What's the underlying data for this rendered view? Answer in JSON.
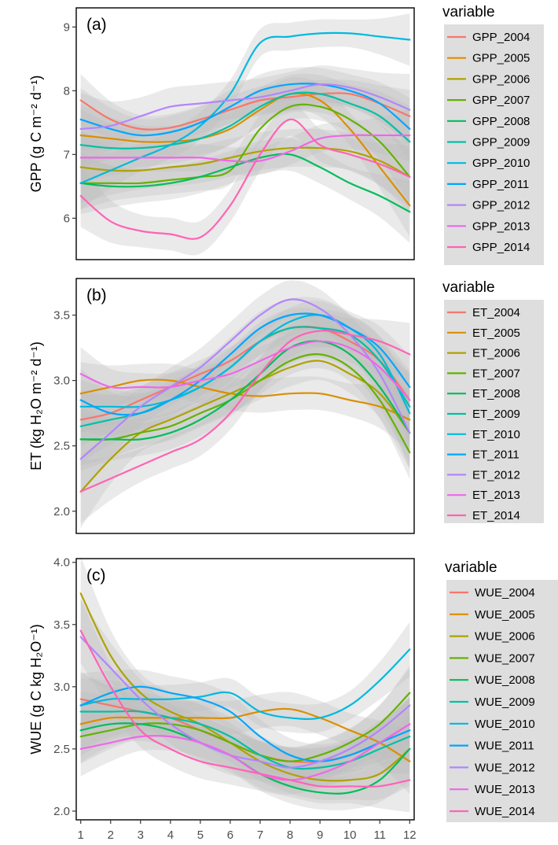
{
  "colors": {
    "2004": "#F8766D",
    "2005": "#DB8E00",
    "2006": "#AEA200",
    "2007": "#64B200",
    "2008": "#00BD5C",
    "2009": "#00C1A7",
    "2010": "#00BADE",
    "2011": "#00A6FF",
    "2012": "#B385FF",
    "2013": "#EF67EB",
    "2014": "#FF63B6",
    "band": "#bdbdbd",
    "axis_text": "#4d4d4d"
  },
  "chart_data": [
    {
      "type": "line",
      "panel_label": "(a)",
      "ylabel": "GPP (g C m⁻² d⁻¹)",
      "ylim": [
        5.35,
        9.3
      ],
      "yticks": [
        6,
        7,
        8,
        9
      ],
      "xlim": [
        0.85,
        12.15
      ],
      "xticks": [],
      "legend": {
        "title": "variable",
        "placement": "right"
      },
      "x": [
        1,
        2,
        3,
        4,
        5,
        6,
        7,
        8,
        9,
        10,
        11,
        12
      ],
      "series": [
        {
          "name": "GPP_2004",
          "year": "2004",
          "values": [
            7.85,
            7.55,
            7.4,
            7.42,
            7.55,
            7.7,
            7.85,
            7.9,
            7.95,
            7.95,
            7.8,
            7.6
          ]
        },
        {
          "name": "GPP_2005",
          "year": "2005",
          "values": [
            7.3,
            7.25,
            7.2,
            7.2,
            7.25,
            7.4,
            7.7,
            7.95,
            7.85,
            7.4,
            6.8,
            6.2
          ]
        },
        {
          "name": "GPP_2006",
          "year": "2006",
          "values": [
            6.8,
            6.75,
            6.75,
            6.8,
            6.85,
            6.95,
            7.05,
            7.1,
            7.1,
            7.05,
            6.9,
            6.65
          ]
        },
        {
          "name": "GPP_2007",
          "year": "2007",
          "values": [
            6.55,
            6.55,
            6.55,
            6.6,
            6.65,
            6.75,
            7.4,
            7.75,
            7.75,
            7.55,
            7.2,
            6.65
          ]
        },
        {
          "name": "GPP_2008",
          "year": "2008",
          "values": [
            6.55,
            6.5,
            6.5,
            6.55,
            6.65,
            6.8,
            6.95,
            7.0,
            6.8,
            6.55,
            6.35,
            6.1
          ]
        },
        {
          "name": "GPP_2009",
          "year": "2009",
          "values": [
            7.15,
            7.1,
            7.1,
            7.15,
            7.25,
            7.45,
            7.75,
            7.95,
            7.95,
            7.8,
            7.6,
            7.2
          ]
        },
        {
          "name": "GPP_2010",
          "year": "2010",
          "values": [
            6.55,
            6.75,
            6.95,
            7.15,
            7.45,
            7.95,
            8.75,
            8.85,
            8.9,
            8.9,
            8.85,
            8.8
          ]
        },
        {
          "name": "GPP_2011",
          "year": "2011",
          "values": [
            7.55,
            7.4,
            7.3,
            7.35,
            7.5,
            7.75,
            8.0,
            8.1,
            8.1,
            8.0,
            7.8,
            7.4
          ]
        },
        {
          "name": "GPP_2012",
          "year": "2012",
          "values": [
            7.4,
            7.45,
            7.6,
            7.75,
            7.8,
            7.85,
            7.9,
            8.0,
            8.1,
            8.05,
            7.9,
            7.7
          ]
        },
        {
          "name": "GPP_2013",
          "year": "2013",
          "values": [
            6.95,
            6.95,
            6.95,
            6.95,
            6.95,
            6.9,
            6.9,
            7.05,
            7.25,
            7.3,
            7.3,
            7.3
          ]
        },
        {
          "name": "GPP_2014",
          "year": "2014",
          "values": [
            6.35,
            5.95,
            5.8,
            5.75,
            5.7,
            6.2,
            7.0,
            7.55,
            7.15,
            7.0,
            6.85,
            6.65
          ]
        }
      ]
    },
    {
      "type": "line",
      "panel_label": "(b)",
      "ylabel": "ET (kg H₂O m⁻² d⁻¹)",
      "ylim": [
        1.83,
        3.78
      ],
      "yticks": [
        2.0,
        2.5,
        3.0,
        3.5
      ],
      "xlim": [
        0.85,
        12.15
      ],
      "xticks": [],
      "legend": {
        "title": "variable",
        "placement": "right"
      },
      "x": [
        1,
        2,
        3,
        4,
        5,
        6,
        7,
        8,
        9,
        10,
        11,
        12
      ],
      "series": [
        {
          "name": "ET_2004",
          "year": "2004",
          "values": [
            2.7,
            2.75,
            2.85,
            2.95,
            3.05,
            3.15,
            3.3,
            3.4,
            3.4,
            3.3,
            3.15,
            2.85
          ]
        },
        {
          "name": "ET_2005",
          "year": "2005",
          "values": [
            2.9,
            2.95,
            3.0,
            3.0,
            2.95,
            2.9,
            2.88,
            2.9,
            2.9,
            2.85,
            2.8,
            2.7
          ]
        },
        {
          "name": "ET_2006",
          "year": "2006",
          "values": [
            2.15,
            2.4,
            2.6,
            2.7,
            2.8,
            2.9,
            3.0,
            3.1,
            3.15,
            3.05,
            2.9,
            2.6
          ]
        },
        {
          "name": "ET_2007",
          "year": "2007",
          "values": [
            2.55,
            2.55,
            2.6,
            2.65,
            2.75,
            2.85,
            3.0,
            3.15,
            3.2,
            3.1,
            2.85,
            2.45
          ]
        },
        {
          "name": "ET_2008",
          "year": "2008",
          "values": [
            2.55,
            2.55,
            2.55,
            2.6,
            2.7,
            2.85,
            3.05,
            3.25,
            3.3,
            3.2,
            2.95,
            2.6
          ]
        },
        {
          "name": "ET_2009",
          "year": "2009",
          "values": [
            2.65,
            2.7,
            2.75,
            2.85,
            2.95,
            3.1,
            3.3,
            3.4,
            3.4,
            3.35,
            3.15,
            2.8
          ]
        },
        {
          "name": "ET_2010",
          "year": "2010",
          "values": [
            2.8,
            2.8,
            2.8,
            2.85,
            2.95,
            3.1,
            3.3,
            3.45,
            3.5,
            3.4,
            3.2,
            2.75
          ]
        },
        {
          "name": "ET_2011",
          "year": "2011",
          "values": [
            2.85,
            2.75,
            2.75,
            2.85,
            3.0,
            3.2,
            3.4,
            3.5,
            3.5,
            3.4,
            3.25,
            2.95
          ]
        },
        {
          "name": "ET_2012",
          "year": "2012",
          "values": [
            2.4,
            2.6,
            2.8,
            2.95,
            3.1,
            3.3,
            3.5,
            3.62,
            3.55,
            3.35,
            3.05,
            2.6
          ]
        },
        {
          "name": "ET_2013",
          "year": "2013",
          "values": [
            3.05,
            2.95,
            2.95,
            2.95,
            3.0,
            3.05,
            3.15,
            3.25,
            3.3,
            3.25,
            3.1,
            2.85
          ]
        },
        {
          "name": "ET_2014",
          "year": "2014",
          "values": [
            2.15,
            2.25,
            2.35,
            2.45,
            2.55,
            2.75,
            3.05,
            3.3,
            3.38,
            3.35,
            3.3,
            3.2
          ]
        }
      ]
    },
    {
      "type": "line",
      "panel_label": "(c)",
      "ylabel": "WUE (g C kg H₂O⁻¹)",
      "ylim": [
        1.93,
        4.03
      ],
      "yticks": [
        2.0,
        2.5,
        3.0,
        3.5,
        4.0
      ],
      "xlim": [
        0.85,
        12.15
      ],
      "xticks": [
        1,
        2,
        3,
        4,
        5,
        6,
        7,
        8,
        9,
        10,
        11,
        12
      ],
      "legend": {
        "title": "variable",
        "placement": "right"
      },
      "x": [
        1,
        2,
        3,
        4,
        5,
        6,
        7,
        8,
        9,
        10,
        11,
        12
      ],
      "series": [
        {
          "name": "WUE_2004",
          "year": "2004",
          "values": [
            2.9,
            2.85,
            2.8,
            2.75,
            2.65,
            2.55,
            2.45,
            2.4,
            2.4,
            2.45,
            2.55,
            2.7
          ]
        },
        {
          "name": "WUE_2005",
          "year": "2005",
          "values": [
            2.7,
            2.75,
            2.75,
            2.75,
            2.75,
            2.75,
            2.8,
            2.82,
            2.75,
            2.65,
            2.55,
            2.4
          ]
        },
        {
          "name": "WUE_2006",
          "year": "2006",
          "values": [
            3.75,
            3.25,
            2.95,
            2.8,
            2.7,
            2.55,
            2.4,
            2.3,
            2.25,
            2.25,
            2.3,
            2.5
          ]
        },
        {
          "name": "WUE_2007",
          "year": "2007",
          "values": [
            2.6,
            2.65,
            2.7,
            2.7,
            2.65,
            2.55,
            2.45,
            2.4,
            2.45,
            2.55,
            2.7,
            2.95
          ]
        },
        {
          "name": "WUE_2008",
          "year": "2008",
          "values": [
            2.65,
            2.7,
            2.7,
            2.65,
            2.55,
            2.45,
            2.3,
            2.2,
            2.15,
            2.15,
            2.25,
            2.5
          ]
        },
        {
          "name": "WUE_2009",
          "year": "2009",
          "values": [
            2.8,
            2.8,
            2.8,
            2.75,
            2.7,
            2.6,
            2.45,
            2.35,
            2.35,
            2.4,
            2.5,
            2.6
          ]
        },
        {
          "name": "WUE_2010",
          "year": "2010",
          "values": [
            2.85,
            2.9,
            2.9,
            2.9,
            2.92,
            2.95,
            2.8,
            2.75,
            2.75,
            2.85,
            3.05,
            3.3
          ]
        },
        {
          "name": "WUE_2011",
          "year": "2011",
          "values": [
            2.85,
            2.95,
            3.0,
            2.95,
            2.9,
            2.8,
            2.6,
            2.45,
            2.4,
            2.45,
            2.55,
            2.65
          ]
        },
        {
          "name": "WUE_2012",
          "year": "2012",
          "values": [
            3.4,
            3.15,
            2.9,
            2.7,
            2.55,
            2.45,
            2.4,
            2.35,
            2.4,
            2.5,
            2.65,
            2.85
          ]
        },
        {
          "name": "WUE_2013",
          "year": "2013",
          "values": [
            2.5,
            2.55,
            2.6,
            2.6,
            2.55,
            2.45,
            2.3,
            2.25,
            2.3,
            2.4,
            2.55,
            2.7
          ]
        },
        {
          "name": "WUE_2014",
          "year": "2014",
          "values": [
            3.45,
            3.0,
            2.65,
            2.5,
            2.4,
            2.35,
            2.3,
            2.25,
            2.2,
            2.2,
            2.2,
            2.25
          ]
        }
      ]
    }
  ]
}
